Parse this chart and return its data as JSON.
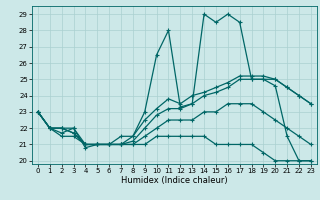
{
  "xlabel": "Humidex (Indice chaleur)",
  "ylabel": "",
  "background_color": "#cce8e8",
  "grid_color": "#aad0d0",
  "line_color": "#006666",
  "x_values": [
    0,
    1,
    2,
    3,
    4,
    5,
    6,
    7,
    8,
    9,
    10,
    11,
    12,
    13,
    14,
    15,
    16,
    17,
    18,
    19,
    20,
    21,
    22,
    23
  ],
  "series": {
    "main": [
      23,
      22,
      21.7,
      22,
      20.8,
      21,
      21,
      21.5,
      21.5,
      23,
      26.5,
      28,
      23.3,
      23.5,
      29,
      28.5,
      29,
      28.5,
      25,
      25,
      24.6,
      21.5,
      20,
      20
    ],
    "line1": [
      23,
      22,
      22,
      21.7,
      21,
      21,
      21,
      21,
      21,
      21.5,
      22,
      22.5,
      22.5,
      22.5,
      23,
      23,
      23.5,
      23.5,
      23.5,
      23,
      22.5,
      22,
      21.5,
      21
    ],
    "line2": [
      23,
      22,
      22,
      21.7,
      21,
      21,
      21,
      21,
      21.2,
      22,
      22.8,
      23.2,
      23.2,
      23.5,
      24,
      24.2,
      24.5,
      25,
      25,
      25,
      25,
      24.5,
      24,
      23.5
    ],
    "line3": [
      23,
      22,
      22,
      22,
      21,
      21,
      21,
      21,
      21.5,
      22.5,
      23.2,
      23.8,
      23.5,
      24,
      24.2,
      24.5,
      24.8,
      25.2,
      25.2,
      25.2,
      25,
      24.5,
      24,
      23.5
    ],
    "line4": [
      23,
      22,
      21.5,
      21.5,
      21,
      21,
      21,
      21,
      21,
      21,
      21.5,
      21.5,
      21.5,
      21.5,
      21.5,
      21,
      21,
      21,
      21,
      20.5,
      20,
      20,
      20,
      20
    ]
  },
  "xlim": [
    -0.5,
    23.5
  ],
  "ylim": [
    19.8,
    29.5
  ],
  "yticks": [
    20,
    21,
    22,
    23,
    24,
    25,
    26,
    27,
    28,
    29
  ],
  "xticks": [
    0,
    1,
    2,
    3,
    4,
    5,
    6,
    7,
    8,
    9,
    10,
    11,
    12,
    13,
    14,
    15,
    16,
    17,
    18,
    19,
    20,
    21,
    22,
    23
  ]
}
